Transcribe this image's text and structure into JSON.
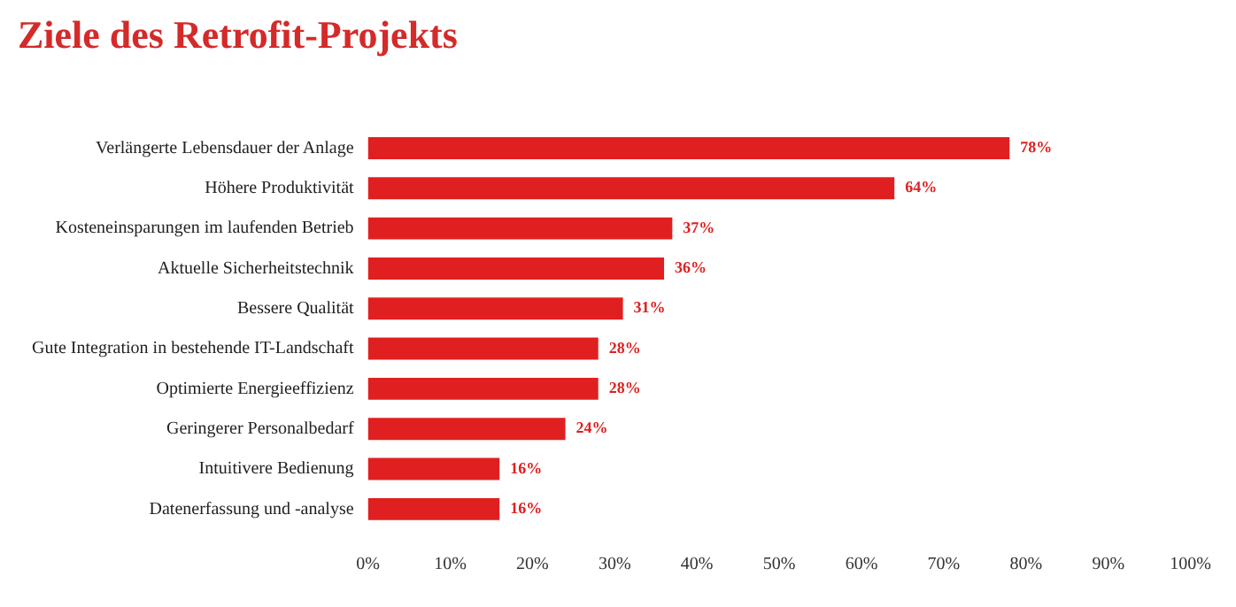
{
  "chart_data": {
    "type": "bar",
    "orientation": "horizontal",
    "title": "Ziele des Retrofit-Projekts",
    "categories": [
      "Verlängerte Lebensdauer der Anlage",
      "Höhere Produktivität",
      "Kosteneinsparungen im laufenden Betrieb",
      "Aktuelle Sicherheitstechnik",
      "Bessere Qualität",
      "Gute Integration in bestehende IT-Landschaft",
      "Optimierte Energieeffizienz",
      "Geringerer Personalbedarf",
      "Intuitivere Bedienung",
      "Datenerfassung und -analyse"
    ],
    "values": [
      78,
      64,
      37,
      36,
      31,
      28,
      28,
      24,
      16,
      16
    ],
    "value_labels": [
      "78%",
      "64%",
      "37%",
      "36%",
      "31%",
      "28%",
      "28%",
      "24%",
      "16%",
      "16%"
    ],
    "color": "#e02020",
    "xlim": [
      0,
      100
    ],
    "xticks": [
      {
        "value": 0,
        "label": "0%"
      },
      {
        "value": 10,
        "label": "10%"
      },
      {
        "value": 20,
        "label": "20%"
      },
      {
        "value": 30,
        "label": "30%"
      },
      {
        "value": 40,
        "label": "40%"
      },
      {
        "value": 50,
        "label": "50%"
      },
      {
        "value": 60,
        "label": "60%"
      },
      {
        "value": 70,
        "label": "70%"
      },
      {
        "value": 80,
        "label": "80%"
      },
      {
        "value": 90,
        "label": "90%"
      },
      {
        "value": 100,
        "label": "100%"
      }
    ],
    "grid": false,
    "legend": false
  }
}
